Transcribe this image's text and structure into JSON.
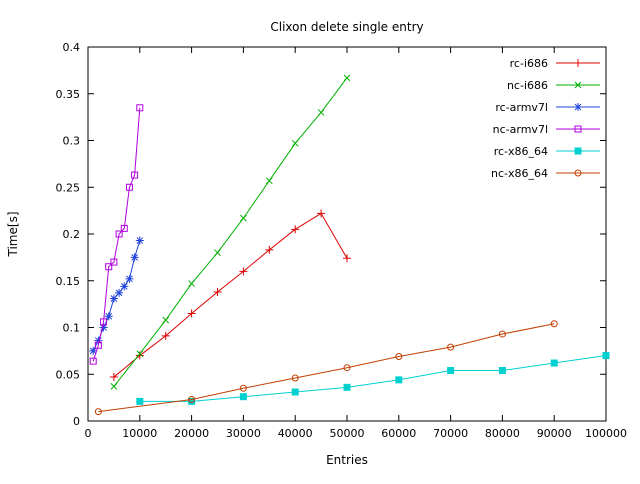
{
  "page": {
    "background": "#ffffff",
    "foreground": "#000000"
  },
  "chart_data": {
    "type": "line",
    "title": "Clixon delete single entry",
    "xlabel": "Entries",
    "ylabel": "Time[s]",
    "xlim": [
      0,
      100000
    ],
    "ylim": [
      0,
      0.4
    ],
    "grid": false,
    "legend_position": "top-right-inside",
    "x_ticks": [
      0,
      10000,
      20000,
      30000,
      40000,
      50000,
      60000,
      70000,
      80000,
      90000,
      100000
    ],
    "x_tick_labels": [
      "0",
      "10000",
      "20000",
      "30000",
      "40000",
      "50000",
      "60000",
      "70000",
      "80000",
      "90000",
      "100000"
    ],
    "y_ticks": [
      0,
      0.05,
      0.1,
      0.15,
      0.2,
      0.25,
      0.3,
      0.35,
      0.4
    ],
    "y_tick_labels": [
      "0",
      "0.05",
      "0.1",
      "0.15",
      "0.2",
      "0.25",
      "0.3",
      "0.35",
      "0.4"
    ],
    "series": [
      {
        "name": "rc-i686",
        "color": "#dd0000",
        "marker": "plus",
        "x": [
          5000,
          10000,
          15000,
          20000,
          25000,
          30000,
          35000,
          40000,
          45000,
          50000
        ],
        "y": [
          0.047,
          0.07,
          0.091,
          0.115,
          0.138,
          0.16,
          0.183,
          0.205,
          0.222,
          0.174
        ]
      },
      {
        "name": "nc-i686",
        "color": "#00b000",
        "marker": "cross",
        "x": [
          5000,
          10000,
          15000,
          20000,
          25000,
          30000,
          35000,
          40000,
          45000,
          50000
        ],
        "y": [
          0.037,
          0.072,
          0.108,
          0.147,
          0.18,
          0.217,
          0.257,
          0.297,
          0.33,
          0.367
        ]
      },
      {
        "name": "rc-armv7l",
        "color": "#2244dd",
        "marker": "asterisk",
        "x": [
          1000,
          2000,
          3000,
          4000,
          5000,
          6000,
          7000,
          8000,
          9000,
          10000
        ],
        "y": [
          0.075,
          0.086,
          0.1,
          0.112,
          0.131,
          0.137,
          0.144,
          0.152,
          0.175,
          0.193
        ]
      },
      {
        "name": "nc-armv7l",
        "color": "#b000e0",
        "marker": "square-open",
        "x": [
          1000,
          2000,
          3000,
          4000,
          5000,
          6000,
          7000,
          8000,
          9000,
          10000
        ],
        "y": [
          0.064,
          0.081,
          0.106,
          0.165,
          0.17,
          0.2,
          0.206,
          0.25,
          0.263,
          0.335
        ]
      },
      {
        "name": "rc-x86_64",
        "color": "#00d0d0",
        "marker": "square-filled",
        "x": [
          10000,
          20000,
          30000,
          40000,
          50000,
          60000,
          70000,
          80000,
          90000,
          100000
        ],
        "y": [
          0.021,
          0.021,
          0.026,
          0.031,
          0.036,
          0.044,
          0.054,
          0.054,
          0.062,
          0.07
        ]
      },
      {
        "name": "nc-x86_64",
        "color": "#c04000",
        "marker": "circle-open",
        "x": [
          2000,
          20000,
          30000,
          40000,
          50000,
          60000,
          70000,
          80000,
          90000
        ],
        "y": [
          0.01,
          0.023,
          0.035,
          0.046,
          0.057,
          0.069,
          0.079,
          0.093,
          0.104
        ]
      }
    ]
  }
}
